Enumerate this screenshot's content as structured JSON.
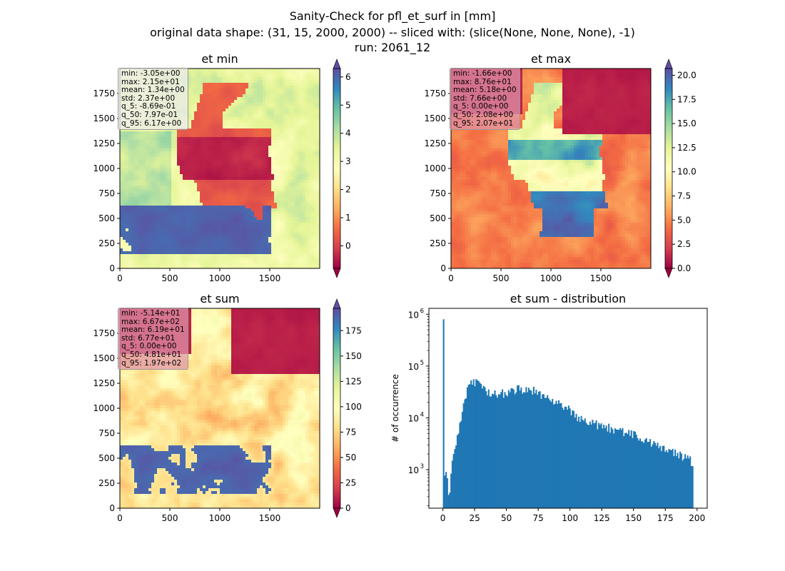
{
  "figure": {
    "title_lines": [
      "Sanity-Check for pfl_et_surf in [mm]",
      "original data shape: (31, 15, 2000, 2000) -- sliced with: (slice(None, None, None), -1)",
      "run: 2061_12"
    ],
    "colormap": "Spectral",
    "colormap_stops": [
      "#9e0142",
      "#d53e4f",
      "#f46d43",
      "#fdae61",
      "#fee08b",
      "#ffffbf",
      "#e6f598",
      "#abdda4",
      "#66c2a5",
      "#3288bd",
      "#5e4fa2"
    ]
  },
  "chart_data": [
    {
      "type": "heatmap",
      "title": "et min",
      "x_ticks": [
        0,
        500,
        1000,
        1500
      ],
      "y_ticks": [
        0,
        250,
        500,
        750,
        1000,
        1250,
        1500,
        1750
      ],
      "xlim": [
        0,
        2000
      ],
      "ylim": [
        0,
        2000
      ],
      "colorbar": {
        "min": -0.8,
        "max": 6.3,
        "ticks": [
          0,
          1,
          2,
          3,
          4,
          5,
          6
        ],
        "extend": "both"
      },
      "stats": [
        "min: -3.05e+00",
        "max: 2.15e+01",
        "mean: 1.34e+00",
        "std: 2.37e+00",
        "q_5: -8.69e-01",
        "q_50: 7.97e-01",
        "q_95: 6.17e+00"
      ],
      "stats_box_style": "light",
      "field_model": "min"
    },
    {
      "type": "heatmap",
      "title": "et max",
      "x_ticks": [
        0,
        500,
        1000,
        1500
      ],
      "y_ticks": [
        0,
        250,
        500,
        750,
        1000,
        1250,
        1500,
        1750
      ],
      "xlim": [
        0,
        2000
      ],
      "ylim": [
        0,
        2000
      ],
      "colorbar": {
        "min": 0,
        "max": 20.7,
        "ticks": [
          0.0,
          2.5,
          5.0,
          7.5,
          10.0,
          12.5,
          15.0,
          17.5,
          20.0
        ],
        "extend": "both"
      },
      "stats": [
        "min: -1.66e+00",
        "max: 8.76e+01",
        "mean: 5.18e+00",
        "std: 7.66e+00",
        "q_5: 0.00e+00",
        "q_50: 2.08e+00",
        "q_95: 2.07e+01"
      ],
      "stats_box_style": "pink",
      "field_model": "max"
    },
    {
      "type": "heatmap",
      "title": "et sum",
      "x_ticks": [
        0,
        500,
        1000,
        1500
      ],
      "y_ticks": [
        0,
        250,
        500,
        750,
        1000,
        1250,
        1500,
        1750
      ],
      "xlim": [
        0,
        2000
      ],
      "ylim": [
        0,
        2000
      ],
      "colorbar": {
        "min": 0,
        "max": 197,
        "ticks": [
          0,
          25,
          50,
          75,
          100,
          125,
          150,
          175
        ],
        "extend": "both"
      },
      "stats": [
        "min: -5.14e+01",
        "max: 6.67e+02",
        "mean: 6.19e+01",
        "std: 6.77e+01",
        "q_5: 0.00e+00",
        "q_50: 4.81e+01",
        "q_95: 1.97e+02"
      ],
      "stats_box_style": "pink",
      "field_model": "sum"
    },
    {
      "type": "bar",
      "title": "et sum - distribution",
      "ylabel": "# of occurrence",
      "yscale": "log",
      "ylim": [
        180,
        1300000
      ],
      "xlim": [
        -11,
        208
      ],
      "x_ticks": [
        0,
        25,
        50,
        75,
        100,
        125,
        150,
        175,
        200
      ],
      "y_ticks": [
        {
          "value": 1000,
          "label": "10",
          "exp": "3"
        },
        {
          "value": 10000,
          "label": "10",
          "exp": "4"
        },
        {
          "value": 100000,
          "label": "10",
          "exp": "5"
        },
        {
          "value": 1000000,
          "label": "10",
          "exp": "6"
        }
      ],
      "bin_edges_range": [
        0,
        197
      ],
      "bin_count": 200,
      "bar_color": "#1f77b4",
      "counts_anchor_points": [
        [
          0,
          800000
        ],
        [
          1,
          600
        ],
        [
          2,
          1000
        ],
        [
          3,
          800
        ],
        [
          4,
          450
        ],
        [
          5,
          300
        ],
        [
          6,
          650
        ],
        [
          7,
          1200
        ],
        [
          8,
          1600
        ],
        [
          9,
          2000
        ],
        [
          10,
          2600
        ],
        [
          11,
          3500
        ],
        [
          12,
          5000
        ],
        [
          13,
          6500
        ],
        [
          14,
          8000
        ],
        [
          15,
          11000
        ],
        [
          16,
          15000
        ],
        [
          17,
          20000
        ],
        [
          18,
          26000
        ],
        [
          19,
          32000
        ],
        [
          20,
          38000
        ],
        [
          22,
          44000
        ],
        [
          24,
          48000
        ],
        [
          26,
          48000
        ],
        [
          28,
          44000
        ],
        [
          30,
          38000
        ],
        [
          35,
          33000
        ],
        [
          40,
          30000
        ],
        [
          45,
          31000
        ],
        [
          50,
          30000
        ],
        [
          55,
          33000
        ],
        [
          60,
          36000
        ],
        [
          65,
          36000
        ],
        [
          70,
          35000
        ],
        [
          75,
          31000
        ],
        [
          80,
          26000
        ],
        [
          85,
          22000
        ],
        [
          90,
          19000
        ],
        [
          95,
          16000
        ],
        [
          100,
          14000
        ],
        [
          105,
          11000
        ],
        [
          110,
          9000
        ],
        [
          115,
          8000
        ],
        [
          120,
          7500
        ],
        [
          125,
          7000
        ],
        [
          130,
          6500
        ],
        [
          135,
          6000
        ],
        [
          140,
          5500
        ],
        [
          145,
          5000
        ],
        [
          150,
          4700
        ],
        [
          155,
          4200
        ],
        [
          160,
          3600
        ],
        [
          165,
          3200
        ],
        [
          170,
          2800
        ],
        [
          175,
          2400
        ],
        [
          180,
          2200
        ],
        [
          185,
          2000
        ],
        [
          190,
          1800
        ],
        [
          195,
          1600
        ],
        [
          197,
          1000
        ]
      ]
    }
  ]
}
